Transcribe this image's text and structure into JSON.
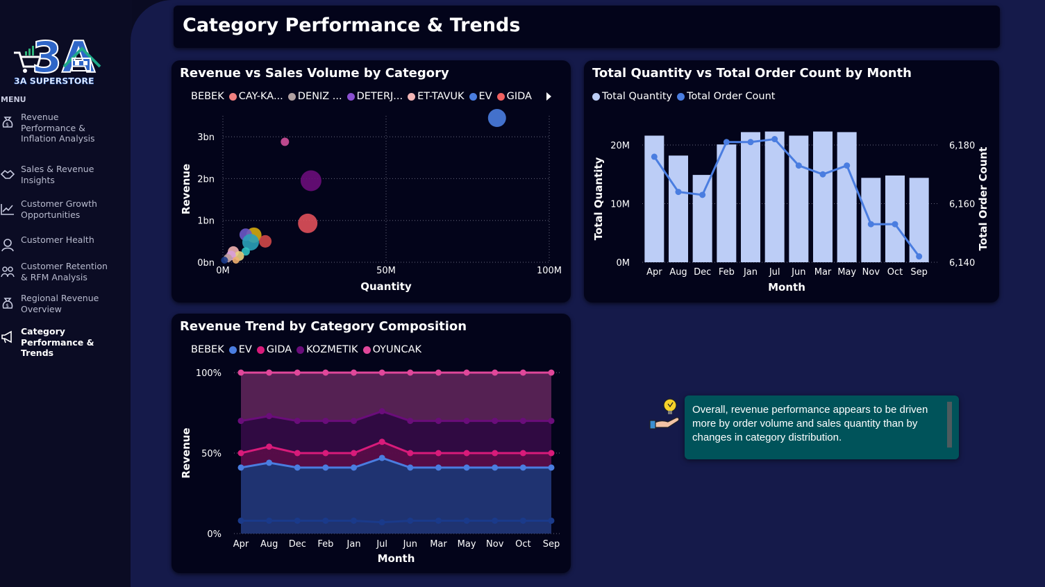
{
  "brand": {
    "logo_text": "3A",
    "name": "3A SUPERSTORE"
  },
  "sidebar": {
    "menu_label": "MENU",
    "items": [
      {
        "label": "Revenue\nPerformance &\nInflation Analysis",
        "icon": "money-bag-icon",
        "active": false
      },
      {
        "label": "Sales & Revenue\nInsights",
        "icon": "handshake-icon",
        "active": false
      },
      {
        "label": "Customer Growth\nOpportunities",
        "icon": "growth-chart-icon",
        "active": false
      },
      {
        "label": "Customer Health",
        "icon": "customer-health-icon",
        "active": false
      },
      {
        "label": "Customer Retention\n& RFM Analysis",
        "icon": "retention-icon",
        "active": false
      },
      {
        "label": "Regional Revenue\nOverview",
        "icon": "money-bag-icon",
        "active": false
      },
      {
        "label": "Category\nPerformance &\nTrends",
        "icon": "megaphone-icon",
        "active": true
      }
    ]
  },
  "page_title": "Category Performance & Trends",
  "colors": {
    "bg": "#151a4a",
    "card": "#03041a",
    "bar": "#bccdf6",
    "line": "#4a7de0",
    "insight": "#00535a"
  },
  "chart_data": [
    {
      "type": "scatter",
      "title": "Revenue vs Sales Volume by Category",
      "xlabel": "Quantity",
      "ylabel": "Revenue",
      "xlim": [
        0,
        100
      ],
      "ylim": [
        0,
        3.5
      ],
      "xticks": [
        "0M",
        "50M",
        "100M"
      ],
      "yticks": [
        "0bn",
        "1bn",
        "2bn",
        "3bn"
      ],
      "legend": [
        {
          "name": "BEBEK",
          "color": "#1a3a8a"
        },
        {
          "name": "CAY-KA...",
          "color": "#f08080"
        },
        {
          "name": "DENIZ ...",
          "color": "#b0a0a0"
        },
        {
          "name": "DETERJ...",
          "color": "#8a4fd0"
        },
        {
          "name": "ET-TAVUK",
          "color": "#f2b6b6"
        },
        {
          "name": "EV",
          "color": "#4a7de0"
        },
        {
          "name": "GIDA",
          "color": "#f06060"
        }
      ],
      "points": [
        {
          "x": 84,
          "y": 3.45,
          "r": 13,
          "color": "#4a7de0"
        },
        {
          "x": 19,
          "y": 2.88,
          "r": 6,
          "color": "#d0509a"
        },
        {
          "x": 27,
          "y": 1.95,
          "r": 15,
          "color": "#6a0d7a"
        },
        {
          "x": 26,
          "y": 0.93,
          "r": 14,
          "color": "#e0505a"
        },
        {
          "x": 9.5,
          "y": 0.65,
          "r": 11,
          "color": "#d4aa10"
        },
        {
          "x": 7,
          "y": 0.66,
          "r": 9,
          "color": "#6a58c8"
        },
        {
          "x": 13,
          "y": 0.5,
          "r": 9,
          "color": "#d04848"
        },
        {
          "x": 8.5,
          "y": 0.48,
          "r": 12,
          "color": "#2aa0b8"
        },
        {
          "x": 7,
          "y": 0.26,
          "r": 6,
          "color": "#30c0c0"
        },
        {
          "x": 3.2,
          "y": 0.25,
          "r": 8,
          "color": "#f0b0b0"
        },
        {
          "x": 5,
          "y": 0.15,
          "r": 7,
          "color": "#e8d080"
        },
        {
          "x": 2.5,
          "y": 0.16,
          "r": 7,
          "color": "#d8a0d8"
        },
        {
          "x": 1.5,
          "y": 0.1,
          "r": 6,
          "color": "#c0a0a0"
        },
        {
          "x": 0.5,
          "y": 0.05,
          "r": 5,
          "color": "#1a3a8a"
        },
        {
          "x": 4,
          "y": 0.05,
          "r": 5,
          "color": "#f0b070"
        }
      ]
    },
    {
      "type": "bar",
      "title": "Total Quantity vs Total Order Count by Month",
      "xlabel": "Month",
      "ylabel": "Total Quantity",
      "y2label": "Total Order Count",
      "ylim": [
        0,
        20
      ],
      "y2lim": [
        6140,
        6180
      ],
      "yticks": [
        "0M",
        "10M",
        "20M"
      ],
      "y2ticks": [
        "6,140",
        "6,160",
        "6,180"
      ],
      "categories": [
        "Apr",
        "Aug",
        "Dec",
        "Feb",
        "Jan",
        "Jul",
        "Jun",
        "Mar",
        "May",
        "Nov",
        "Oct",
        "Sep"
      ],
      "series": [
        {
          "name": "Total Quantity",
          "type": "bar",
          "color": "#bccdf6",
          "values": [
            21.6,
            18.2,
            14.9,
            20.1,
            22.2,
            22.3,
            21.6,
            22.3,
            22.2,
            14.4,
            14.8,
            14.4
          ]
        },
        {
          "name": "Total Order Count",
          "type": "line",
          "color": "#4a7de0",
          "values": [
            6176,
            6164,
            6163,
            6181,
            6181,
            6182,
            6173,
            6170,
            6173,
            6153,
            6153,
            6142
          ]
        }
      ]
    },
    {
      "type": "area",
      "title": "Revenue Trend by Category Composition",
      "xlabel": "Month",
      "ylabel": "Revenue",
      "ylim": [
        0,
        100
      ],
      "yticks": [
        "0%",
        "50%",
        "100%"
      ],
      "categories": [
        "Apr",
        "Aug",
        "Dec",
        "Feb",
        "Jan",
        "Jul",
        "Jun",
        "Mar",
        "May",
        "Nov",
        "Oct",
        "Sep"
      ],
      "series": [
        {
          "name": "BEBEK",
          "color": "#1a3a8a",
          "values": [
            8,
            8,
            8,
            8,
            8,
            7,
            8,
            8,
            8,
            8,
            8,
            8
          ]
        },
        {
          "name": "EV",
          "color": "#4a7de0",
          "values": [
            41,
            44,
            41,
            41,
            41,
            47,
            41,
            41,
            41,
            41,
            41,
            41
          ]
        },
        {
          "name": "GIDA",
          "color": "#d81b7a",
          "values": [
            50,
            54,
            50,
            50,
            50,
            57,
            50,
            50,
            50,
            50,
            50,
            50
          ]
        },
        {
          "name": "KOZMETIK",
          "color": "#6a0d7a",
          "values": [
            70,
            73,
            70,
            70,
            70,
            76,
            70,
            70,
            70,
            70,
            70,
            70
          ]
        },
        {
          "name": "OYUNCAK",
          "color": "#e0479a",
          "values": [
            100,
            100,
            100,
            100,
            100,
            100,
            100,
            100,
            100,
            100,
            100,
            100
          ]
        }
      ]
    }
  ],
  "insight": {
    "text": "Overall, revenue performance appears to be driven more by order volume and sales quantity than by changes in category distribution.",
    "icon": "idea-hand-icon"
  }
}
